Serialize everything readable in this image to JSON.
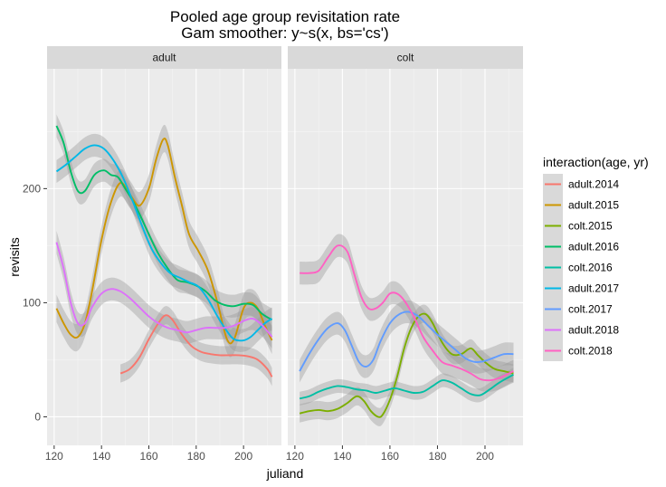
{
  "chart_data": {
    "type": "line",
    "title": "Pooled age group revisitation rate",
    "subtitle": "Gam smoother: y~s(x, bs='cs')",
    "xlabel": "juliand",
    "ylabel": "revisits",
    "xlim": [
      117,
      216
    ],
    "ylim": [
      -25,
      305
    ],
    "x_ticks": [
      120,
      140,
      160,
      180,
      200
    ],
    "y_ticks": [
      0,
      100,
      200
    ],
    "grid": true,
    "facets": [
      "adult",
      "colt"
    ],
    "legend": {
      "title": "interaction(age, yr)",
      "placement": "right",
      "entries": [
        {
          "label": "adult.2014",
          "color": "#F8766D"
        },
        {
          "label": "adult.2015",
          "color": "#CD9600"
        },
        {
          "label": "colt.2015",
          "color": "#7CAE00"
        },
        {
          "label": "adult.2016",
          "color": "#00BE67"
        },
        {
          "label": "colt.2016",
          "color": "#00BFA4"
        },
        {
          "label": "adult.2017",
          "color": "#00B8E7"
        },
        {
          "label": "colt.2017",
          "color": "#619CFF"
        },
        {
          "label": "adult.2018",
          "color": "#DD71FA"
        },
        {
          "label": "colt.2018",
          "color": "#FF61C3"
        }
      ]
    },
    "series": [
      {
        "name": "adult.2014",
        "facet": "adult",
        "color": "#F8766D",
        "band": 8,
        "x": [
          148,
          152,
          156,
          160,
          164,
          167,
          170,
          174,
          178,
          182,
          186,
          190,
          194,
          198,
          202,
          206,
          210,
          212
        ],
        "y": [
          38,
          42,
          52,
          68,
          82,
          89,
          85,
          72,
          62,
          57,
          55,
          54,
          54,
          54,
          53,
          50,
          42,
          35
        ]
      },
      {
        "name": "adult.2015",
        "facet": "adult",
        "color": "#CD9600",
        "band": 12,
        "x": [
          121,
          124,
          127,
          130,
          133,
          136,
          140,
          144,
          148,
          152,
          156,
          160,
          163,
          166,
          168,
          171,
          174,
          177,
          181,
          185,
          189,
          193,
          196,
          200,
          203,
          206,
          209,
          212
        ],
        "y": [
          95,
          82,
          72,
          70,
          82,
          110,
          155,
          188,
          205,
          195,
          185,
          200,
          225,
          243,
          238,
          210,
          185,
          160,
          145,
          128,
          100,
          68,
          68,
          95,
          100,
          95,
          80,
          67
        ]
      },
      {
        "name": "colt.2015",
        "facet": "colt",
        "color": "#7CAE00",
        "band": 8,
        "x": [
          122,
          126,
          130,
          134,
          138,
          142,
          146,
          149,
          152,
          155,
          157,
          160,
          163,
          166,
          169,
          172,
          175,
          178,
          182,
          186,
          190,
          194,
          197,
          200,
          204,
          208,
          212
        ],
        "y": [
          3,
          5,
          6,
          5,
          7,
          12,
          18,
          14,
          5,
          0,
          2,
          15,
          35,
          60,
          78,
          88,
          90,
          82,
          65,
          55,
          55,
          60,
          54,
          48,
          42,
          40,
          38
        ]
      },
      {
        "name": "adult.2016",
        "facet": "adult",
        "color": "#00BE67",
        "band": 10,
        "x": [
          121,
          124,
          127,
          130,
          133,
          137,
          141,
          144,
          147,
          150,
          153,
          156,
          160,
          164,
          168,
          172,
          176,
          180,
          184,
          188,
          192,
          196,
          200,
          204,
          208,
          212
        ],
        "y": [
          255,
          240,
          215,
          198,
          198,
          212,
          216,
          212,
          210,
          200,
          190,
          178,
          160,
          143,
          130,
          120,
          118,
          115,
          110,
          102,
          98,
          97,
          99,
          98,
          90,
          85
        ]
      },
      {
        "name": "colt.2016",
        "facet": "colt",
        "color": "#00BFA4",
        "band": 6,
        "x": [
          122,
          126,
          130,
          134,
          138,
          142,
          146,
          150,
          154,
          158,
          162,
          166,
          170,
          174,
          178,
          182,
          186,
          190,
          194,
          198,
          202,
          206,
          212
        ],
        "y": [
          16,
          18,
          22,
          25,
          27,
          26,
          24,
          23,
          21,
          23,
          25,
          23,
          21,
          22,
          27,
          32,
          30,
          25,
          20,
          19,
          24,
          30,
          37
        ]
      },
      {
        "name": "adult.2017",
        "facet": "adult",
        "color": "#00B8E7",
        "band": 10,
        "x": [
          121,
          125,
          129,
          133,
          137,
          141,
          145,
          149,
          153,
          157,
          161,
          165,
          169,
          173,
          177,
          181,
          185,
          189,
          193,
          196,
          200,
          203,
          206,
          209,
          212
        ],
        "y": [
          215,
          221,
          228,
          235,
          238,
          235,
          225,
          210,
          190,
          168,
          148,
          135,
          126,
          122,
          118,
          114,
          103,
          88,
          75,
          68,
          67,
          70,
          76,
          82,
          86
        ]
      },
      {
        "name": "colt.2017",
        "facet": "colt",
        "color": "#619CFF",
        "band": 10,
        "x": [
          122,
          126,
          130,
          134,
          138,
          141,
          144,
          147,
          150,
          153,
          156,
          160,
          164,
          168,
          172,
          176,
          180,
          184,
          188,
          192,
          196,
          200,
          204,
          208,
          212
        ],
        "y": [
          40,
          55,
          68,
          78,
          82,
          76,
          62,
          48,
          44,
          50,
          66,
          82,
          90,
          92,
          88,
          80,
          72,
          65,
          58,
          51,
          48,
          49,
          52,
          55,
          55
        ]
      },
      {
        "name": "adult.2018",
        "facet": "adult",
        "color": "#DD71FA",
        "band": 10,
        "x": [
          121,
          124,
          127,
          130,
          133,
          136,
          140,
          144,
          148,
          152,
          156,
          160,
          164,
          168,
          172,
          176,
          180,
          184,
          188,
          192,
          196,
          200,
          204,
          208,
          212
        ],
        "y": [
          153,
          130,
          100,
          82,
          82,
          96,
          108,
          112,
          110,
          104,
          96,
          88,
          82,
          78,
          76,
          74,
          76,
          78,
          78,
          78,
          80,
          84,
          86,
          80,
          70
        ]
      },
      {
        "name": "colt.2018",
        "facet": "colt",
        "color": "#FF61C3",
        "band": 10,
        "x": [
          122,
          126,
          130,
          134,
          138,
          142,
          145,
          148,
          151,
          154,
          157,
          160,
          163,
          166,
          170,
          174,
          178,
          182,
          186,
          190,
          194,
          198,
          202,
          206,
          210,
          212
        ],
        "y": [
          126,
          126,
          128,
          140,
          150,
          145,
          125,
          105,
          95,
          95,
          100,
          108,
          108,
          102,
          88,
          70,
          58,
          48,
          45,
          42,
          38,
          33,
          32,
          34,
          38,
          40
        ]
      }
    ]
  }
}
